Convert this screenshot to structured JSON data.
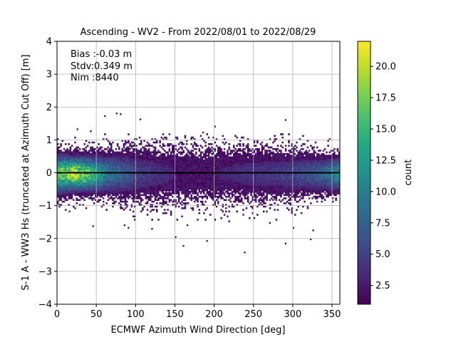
{
  "chart_data": {
    "type": "heatmap",
    "title": "Ascending - WV2 - From 2022/08/01 to 2022/08/29",
    "xlabel": "ECMWF Azimuth Wind Direction [deg]",
    "ylabel": "S-1 A - WW3 Hs (truncated at Azimuth Cut Off) [m]",
    "xlim": [
      0,
      360
    ],
    "ylim": [
      -4,
      4
    ],
    "xticks": [
      "0",
      "50",
      "100",
      "150",
      "200",
      "250",
      "300",
      "350"
    ],
    "yticks": [
      "−4",
      "−3",
      "−2",
      "−1",
      "0",
      "1",
      "2",
      "3",
      "4"
    ],
    "grid": true,
    "stats": [
      "Bias :-0.03 m",
      "Stdv:0.349 m",
      "Nim :8440"
    ],
    "mean_line_y": 0.0,
    "colorbar": {
      "label": "count",
      "range": [
        1,
        22
      ],
      "ticks": [
        "2.5",
        "5.0",
        "7.5",
        "10.0",
        "12.5",
        "15.0",
        "17.5",
        "20.0"
      ],
      "colormap": "viridis"
    },
    "density_profile": {
      "x_deg": [
        0,
        20,
        40,
        60,
        100,
        150,
        200,
        250,
        300,
        340,
        360
      ],
      "core_count": [
        16,
        20,
        16,
        10,
        5,
        3,
        3,
        4,
        5,
        8,
        12
      ],
      "spread_m": [
        0.35,
        0.3,
        0.32,
        0.35,
        0.45,
        0.5,
        0.5,
        0.45,
        0.4,
        0.32,
        0.3
      ]
    },
    "outliers": [
      {
        "x": 75,
        "y": 1.78
      },
      {
        "x": 80,
        "y": 1.76
      },
      {
        "x": 60,
        "y": 1.7
      },
      {
        "x": 105,
        "y": 1.6
      },
      {
        "x": 200,
        "y": 1.38
      },
      {
        "x": 290,
        "y": 1.58
      },
      {
        "x": 25,
        "y": 1.3
      },
      {
        "x": 42,
        "y": 1.24
      },
      {
        "x": 185,
        "y": 1.2
      },
      {
        "x": 238,
        "y": -2.45
      },
      {
        "x": 290,
        "y": -2.18
      },
      {
        "x": 160,
        "y": -2.25
      },
      {
        "x": 150,
        "y": -1.98
      },
      {
        "x": 190,
        "y": -2.1
      },
      {
        "x": 322,
        "y": -2.05
      },
      {
        "x": 325,
        "y": -1.78
      },
      {
        "x": 300,
        "y": -1.7
      },
      {
        "x": 45,
        "y": -1.65
      },
      {
        "x": 90,
        "y": -1.7
      },
      {
        "x": 120,
        "y": -1.73
      },
      {
        "x": 165,
        "y": -1.62
      },
      {
        "x": 270,
        "y": -1.55
      },
      {
        "x": 15,
        "y": -1.2
      },
      {
        "x": 85,
        "y": -1.62
      }
    ]
  }
}
